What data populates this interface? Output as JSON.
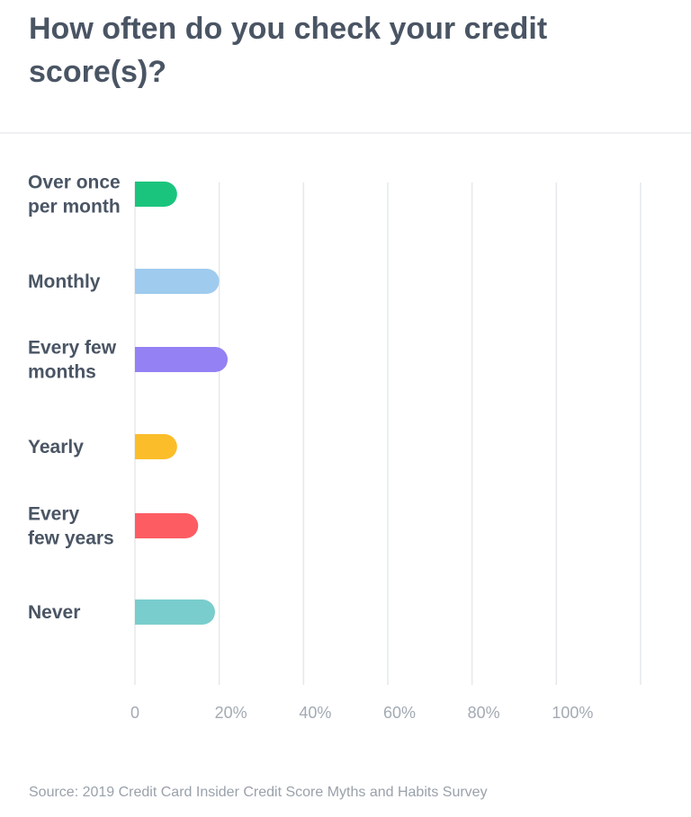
{
  "title": "How often do you check your credit score(s)?",
  "source": "Source: 2019 Credit Card Insider Credit Score Myths and Habits Survey",
  "chart_data": {
    "type": "bar",
    "orientation": "horizontal",
    "title": "How often do you check your credit score(s)?",
    "categories": [
      [
        "Over once",
        "per month"
      ],
      [
        "Monthly"
      ],
      [
        "Every few",
        "months"
      ],
      [
        "Yearly"
      ],
      [
        "Every",
        "few years"
      ],
      [
        "Never"
      ]
    ],
    "values": [
      10,
      20,
      22,
      10,
      15,
      19
    ],
    "colors": [
      "#1bc47d",
      "#9fcbef",
      "#9481f4",
      "#fbbd2a",
      "#fd5c63",
      "#79cdcd"
    ],
    "xticks": [
      "0",
      "20%",
      "40%",
      "60%",
      "80%",
      "100%"
    ],
    "xlim": [
      0,
      120
    ],
    "grid": true
  }
}
